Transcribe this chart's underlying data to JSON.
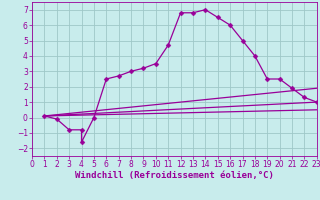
{
  "xlabel": "Windchill (Refroidissement éolien,°C)",
  "bg_color": "#c8ecec",
  "grid_color": "#9fc8c8",
  "line_color": "#990099",
  "xlim": [
    0,
    23
  ],
  "ylim": [
    -2.5,
    7.5
  ],
  "xticks": [
    0,
    1,
    2,
    3,
    4,
    5,
    6,
    7,
    8,
    9,
    10,
    11,
    12,
    13,
    14,
    15,
    16,
    17,
    18,
    19,
    20,
    21,
    22,
    23
  ],
  "yticks": [
    -2,
    -1,
    0,
    1,
    2,
    3,
    4,
    5,
    6,
    7
  ],
  "line1_x": [
    1,
    2,
    3,
    4,
    4,
    5,
    6,
    7,
    8,
    9,
    10,
    11,
    12,
    13,
    14,
    15,
    16,
    17,
    18,
    19,
    20,
    21,
    22,
    23
  ],
  "line1_y": [
    0.1,
    -0.1,
    -0.8,
    -0.8,
    -1.6,
    0.0,
    2.5,
    2.7,
    3.0,
    3.2,
    3.5,
    4.7,
    6.8,
    6.8,
    7.0,
    6.5,
    6.0,
    5.0,
    4.0,
    2.5,
    2.5,
    1.9,
    1.3,
    1.0
  ],
  "line2_x": [
    1,
    23
  ],
  "line2_y": [
    0.1,
    0.5
  ],
  "line3_x": [
    1,
    23
  ],
  "line3_y": [
    0.1,
    1.0
  ],
  "line4_x": [
    1,
    23
  ],
  "line4_y": [
    0.1,
    1.9
  ],
  "marker_size": 2.5,
  "line_width": 0.9,
  "xlabel_fontsize": 6.5,
  "tick_fontsize": 5.5
}
